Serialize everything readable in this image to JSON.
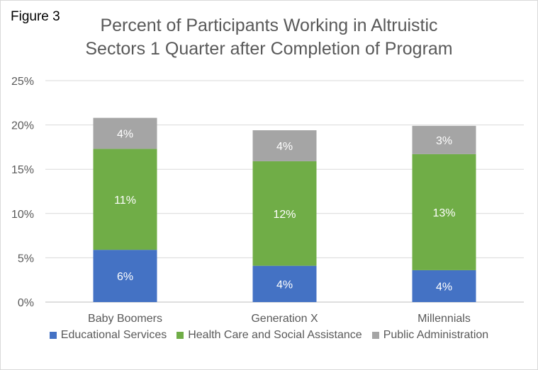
{
  "figure_label": "Figure 3",
  "chart_data": {
    "type": "bar",
    "stacked": true,
    "title_lines": [
      "Percent of Participants Working in Altruistic",
      "Sectors 1 Quarter after Completion of Program"
    ],
    "categories": [
      "Baby Boomers",
      "Generation X",
      "Millennials"
    ],
    "series": [
      {
        "name": "Educational Services",
        "color": "#4472c4",
        "values": [
          5.9,
          4.1,
          3.6
        ],
        "labels": [
          "6%",
          "4%",
          "4%"
        ]
      },
      {
        "name": "Health Care and Social Assistance",
        "color": "#70ad47",
        "values": [
          11.4,
          11.8,
          13.1
        ],
        "labels": [
          "11%",
          "12%",
          "13%"
        ]
      },
      {
        "name": "Public Administration",
        "color": "#a5a5a5",
        "values": [
          3.5,
          3.5,
          3.2
        ],
        "labels": [
          "4%",
          "4%",
          "3%"
        ]
      }
    ],
    "ylim": [
      0,
      25
    ],
    "yticks": [
      0,
      5,
      10,
      15,
      20,
      25
    ],
    "ytick_labels": [
      "0%",
      "5%",
      "10%",
      "15%",
      "20%",
      "25%"
    ],
    "grid": true,
    "legend_position": "bottom"
  }
}
